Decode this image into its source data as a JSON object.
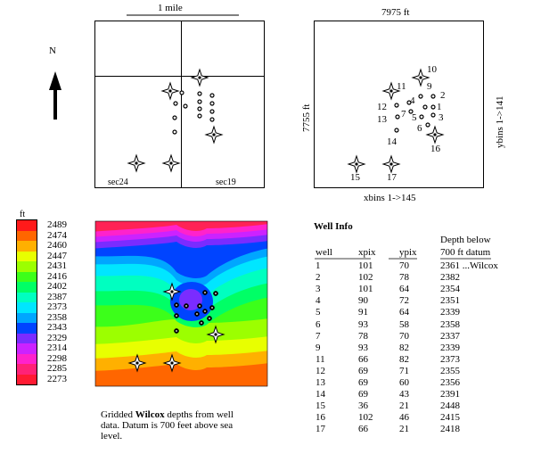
{
  "scale_bar": {
    "label": "1 mile"
  },
  "north_arrow": {
    "label": "N"
  },
  "section_map": {
    "labels": {
      "left": "sec24",
      "right": "sec19"
    }
  },
  "well_map": {
    "top_label": "7975 ft",
    "left_label": "7755 ft",
    "bottom_label": "xbins 1->145",
    "right_label": "ybins 1->141"
  },
  "color_legend": {
    "unit": "ft",
    "levels": [
      {
        "value": "2489",
        "color": "#ff1a1a"
      },
      {
        "value": "2474",
        "color": "#ff6600"
      },
      {
        "value": "2460",
        "color": "#ffb000"
      },
      {
        "value": "2447",
        "color": "#e8ff00"
      },
      {
        "value": "2431",
        "color": "#9cff00"
      },
      {
        "value": "2416",
        "color": "#3cff1a"
      },
      {
        "value": "2402",
        "color": "#00ff66"
      },
      {
        "value": "2387",
        "color": "#00ffc0"
      },
      {
        "value": "2373",
        "color": "#00e6ff"
      },
      {
        "value": "2358",
        "color": "#00a6ff"
      },
      {
        "value": "2343",
        "color": "#0044ff"
      },
      {
        "value": "2329",
        "color": "#7a2cff"
      },
      {
        "value": "2314",
        "color": "#cc22ff"
      },
      {
        "value": "2298",
        "color": "#ff22cc"
      },
      {
        "value": "2285",
        "color": "#ff2277"
      },
      {
        "value": "2273",
        "color": "#ff1a33"
      }
    ]
  },
  "caption": {
    "prefix": "Gridded ",
    "bold": "Wilcox",
    "suffix": " depths from well",
    "line2": "data. Datum is 700 feet above sea",
    "line3": "level."
  },
  "well_info": {
    "title": "Well Info",
    "depth_header_line1": "Depth below",
    "columns": [
      "well",
      "xpix",
      "ypix",
      "700 ft datum"
    ],
    "rows": [
      [
        "1",
        "101",
        "70",
        "2361 ...Wilcox"
      ],
      [
        "2",
        "102",
        "78",
        "2382"
      ],
      [
        "3",
        "101",
        "64",
        "2354"
      ],
      [
        "4",
        "90",
        "72",
        "2351"
      ],
      [
        "5",
        "91",
        "64",
        "2339"
      ],
      [
        "6",
        "93",
        "58",
        "2358"
      ],
      [
        "7",
        "78",
        "70",
        "2337"
      ],
      [
        "9",
        "93",
        "82",
        "2339"
      ],
      [
        "11",
        "66",
        "82",
        "2373"
      ],
      [
        "12",
        "69",
        "71",
        "2355"
      ],
      [
        "13",
        "69",
        "60",
        "2356"
      ],
      [
        "14",
        "69",
        "43",
        "2391"
      ],
      [
        "15",
        "36",
        "21",
        "2448"
      ],
      [
        "16",
        "102",
        "46",
        "2415"
      ],
      [
        "17",
        "66",
        "21",
        "2418"
      ]
    ]
  }
}
